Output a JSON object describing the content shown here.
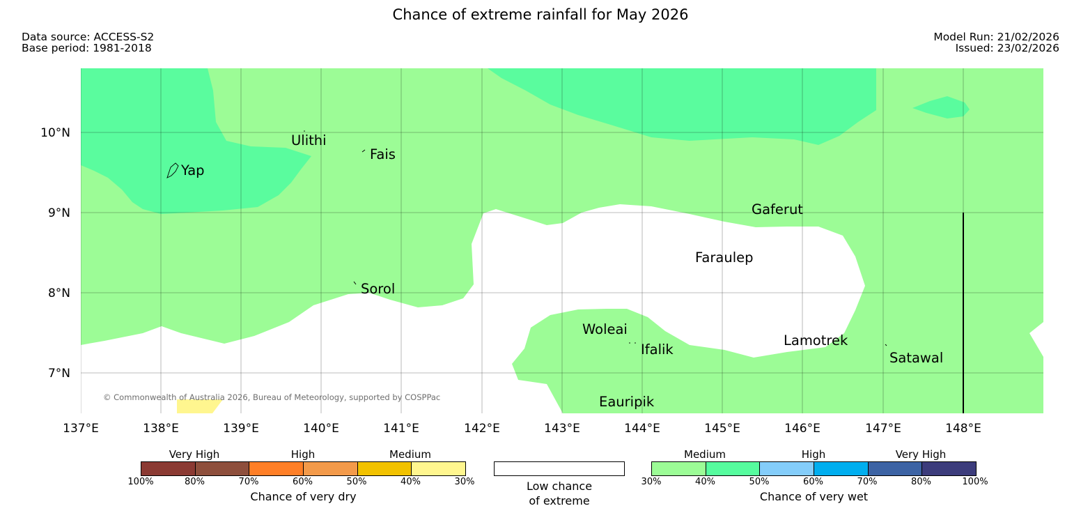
{
  "header": {
    "title": "Chance of extreme rainfall for May 2026",
    "data_source": "Data source: ACCESS-S2",
    "base_period": "Base period: 1981-2018",
    "model_run": "Model Run: 21/02/2026",
    "issued": "Issued: 23/02/2026"
  },
  "map": {
    "copyright": "© Commonwealth of Australia 2026, Bureau of Meteorology, supported by COSPPac",
    "lon_labels": [
      "137°E",
      "138°E",
      "139°E",
      "140°E",
      "141°E",
      "142°E",
      "143°E",
      "144°E",
      "145°E",
      "146°E",
      "147°E",
      "148°E"
    ],
    "lat_labels": [
      "10°N",
      "9°N",
      "8°N",
      "7°N"
    ],
    "places": [
      {
        "name": "Yap"
      },
      {
        "name": "Ulithi"
      },
      {
        "name": "Fais"
      },
      {
        "name": "Gaferut"
      },
      {
        "name": "Faraulep"
      },
      {
        "name": "Sorol"
      },
      {
        "name": "Woleai"
      },
      {
        "name": "Ifalik"
      },
      {
        "name": "Lamotrek"
      },
      {
        "name": "Satawal"
      },
      {
        "name": "Eauripik"
      }
    ]
  },
  "legend": {
    "dry": {
      "title": "Chance of very dry",
      "categories": [
        "Very High",
        "High",
        "Medium"
      ],
      "colors": [
        "#8b3a33",
        "#8e4f3c",
        "#ff7f27",
        "#f39a4a",
        "#f2c200",
        "#fff68f"
      ],
      "ticks": [
        "100%",
        "80%",
        "70%",
        "60%",
        "50%",
        "40%",
        "30%"
      ]
    },
    "low": {
      "line1": "Low chance",
      "line2": "of extreme"
    },
    "wet": {
      "title": "Chance of very wet",
      "categories": [
        "Medium",
        "High",
        "Very High"
      ],
      "colors": [
        "#9cfc96",
        "#56fc9e",
        "#84cdfa",
        "#00aeef",
        "#3c63a4",
        "#3c3c7c"
      ],
      "ticks": [
        "30%",
        "40%",
        "50%",
        "60%",
        "70%",
        "80%",
        "100%"
      ]
    },
    "map_colors": {
      "medium_wet": "#9cfc96",
      "medium_high_wet": "#5afc9e",
      "dry_medium": "#fff68f",
      "low": "#ffffff"
    }
  }
}
